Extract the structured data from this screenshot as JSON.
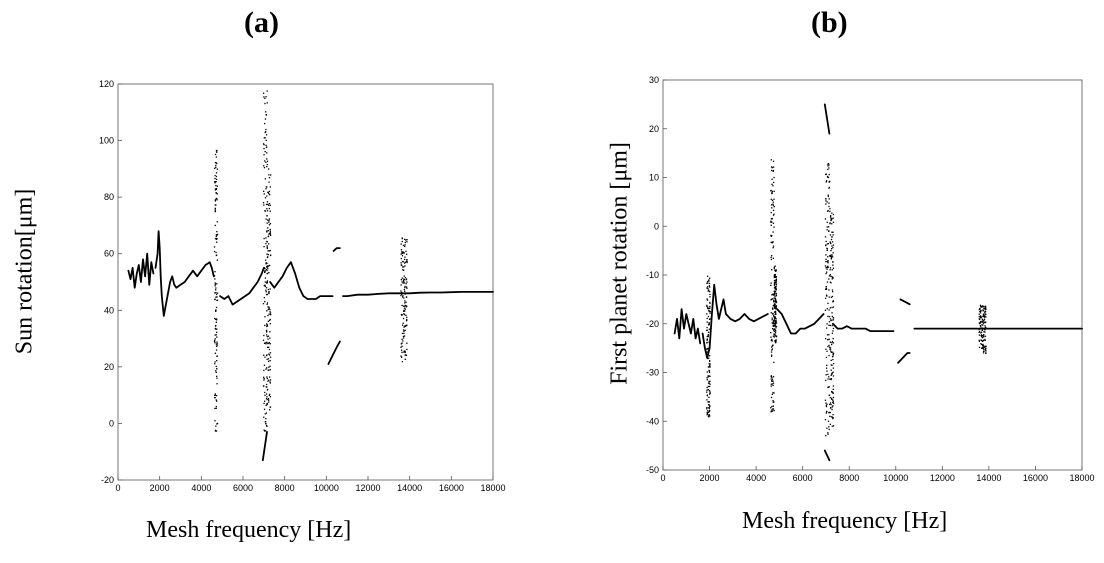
{
  "panels": [
    {
      "letter": "(a)"
    },
    {
      "letter": "(b)"
    }
  ],
  "chart_data": [
    {
      "type": "scatter",
      "xlabel": "Mesh frequency [Hz]",
      "ylabel": "Sun rotation[μm]",
      "xlim": [
        0,
        18000
      ],
      "ylim": [
        -20,
        120
      ],
      "xticks": [
        0,
        2000,
        4000,
        6000,
        8000,
        10000,
        12000,
        14000,
        16000,
        18000
      ],
      "yticks": [
        -20,
        0,
        20,
        40,
        60,
        80,
        100,
        120
      ],
      "grid": false,
      "series": [
        {
          "segments": [
            [
              [
                500,
                54
              ],
              [
                600,
                51
              ],
              [
                700,
                55
              ],
              [
                800,
                48
              ],
              [
                900,
                53
              ],
              [
                1000,
                56
              ],
              [
                1100,
                50
              ],
              [
                1200,
                58
              ],
              [
                1300,
                52
              ],
              [
                1400,
                60
              ],
              [
                1500,
                49
              ],
              [
                1600,
                57
              ],
              [
                1700,
                53
              ]
            ],
            [
              [
                1800,
                55
              ],
              [
                1900,
                60
              ],
              [
                1950,
                68
              ],
              [
                2000,
                62
              ],
              [
                2050,
                52
              ],
              [
                2100,
                45
              ],
              [
                2200,
                38
              ],
              [
                2300,
                42
              ],
              [
                2400,
                46
              ],
              [
                2500,
                50
              ],
              [
                2600,
                52
              ],
              [
                2700,
                49
              ],
              [
                2800,
                48
              ],
              [
                3000,
                49
              ],
              [
                3200,
                50
              ],
              [
                3400,
                52
              ],
              [
                3600,
                54
              ],
              [
                3800,
                52
              ],
              [
                4000,
                54
              ],
              [
                4200,
                56
              ],
              [
                4400,
                57
              ],
              [
                4500,
                55
              ],
              [
                4600,
                52
              ]
            ],
            [
              [
                4900,
                45
              ],
              [
                5100,
                44
              ],
              [
                5300,
                45
              ],
              [
                5500,
                42
              ],
              [
                5700,
                43
              ],
              [
                5900,
                44
              ],
              [
                6100,
                45
              ],
              [
                6300,
                46
              ],
              [
                6500,
                48
              ],
              [
                6700,
                50
              ],
              [
                6900,
                53
              ],
              [
                7000,
                55
              ]
            ],
            [
              [
                7300,
                50
              ],
              [
                7500,
                48
              ],
              [
                7700,
                50
              ],
              [
                7900,
                52
              ],
              [
                8100,
                55
              ],
              [
                8300,
                57
              ],
              [
                8500,
                53
              ],
              [
                8700,
                48
              ],
              [
                8900,
                45
              ],
              [
                9100,
                44
              ],
              [
                9300,
                44
              ],
              [
                9500,
                44
              ],
              [
                9700,
                45
              ],
              [
                9900,
                45
              ],
              [
                10100,
                45
              ],
              [
                10300,
                45
              ]
            ],
            [
              [
                10350,
                61
              ],
              [
                10500,
                62
              ],
              [
                10650,
                62
              ]
            ],
            [
              [
                10100,
                21
              ],
              [
                10300,
                24
              ],
              [
                10500,
                27
              ],
              [
                10650,
                29
              ]
            ],
            [
              [
                10800,
                45
              ],
              [
                11000,
                45
              ],
              [
                11500,
                45.5
              ],
              [
                12000,
                45.5
              ],
              [
                12500,
                45.8
              ],
              [
                13000,
                46
              ],
              [
                13500,
                46
              ],
              [
                14000,
                46
              ],
              [
                14500,
                46.2
              ],
              [
                15000,
                46.3
              ],
              [
                15500,
                46.3
              ],
              [
                16000,
                46.4
              ],
              [
                16500,
                46.5
              ],
              [
                17000,
                46.5
              ],
              [
                17500,
                46.5
              ],
              [
                18000,
                46.5
              ]
            ],
            [
              [
                6950,
                -13
              ],
              [
                7050,
                -8
              ],
              [
                7150,
                -3
              ]
            ]
          ],
          "scatter_bands": [
            {
              "x": [
                4600,
                4750
              ],
              "y": [
                -3,
                97
              ]
            },
            {
              "x": [
                6950,
                7150
              ],
              "y": [
                -3,
                118
              ]
            },
            {
              "x": [
                7100,
                7300
              ],
              "y": [
                5,
                91
              ]
            },
            {
              "x": [
                13550,
                13850
              ],
              "y": [
                22,
                67
              ]
            }
          ]
        }
      ]
    },
    {
      "type": "scatter",
      "xlabel": "Mesh frequency [Hz]",
      "ylabel": "First planet rotation [μm]",
      "xlim": [
        0,
        18000
      ],
      "ylim": [
        -50,
        30
      ],
      "xticks": [
        0,
        2000,
        4000,
        6000,
        8000,
        10000,
        12000,
        14000,
        16000,
        18000
      ],
      "yticks": [
        -50,
        -40,
        -30,
        -20,
        -10,
        0,
        10,
        20,
        30
      ],
      "grid": false,
      "series": [
        {
          "segments": [
            [
              [
                500,
                -22
              ],
              [
                600,
                -19
              ],
              [
                700,
                -23
              ],
              [
                800,
                -17
              ],
              [
                900,
                -21
              ],
              [
                1000,
                -18
              ],
              [
                1100,
                -20
              ],
              [
                1200,
                -22
              ],
              [
                1300,
                -19
              ],
              [
                1400,
                -23
              ],
              [
                1500,
                -21
              ],
              [
                1600,
                -24
              ]
            ],
            [
              [
                1700,
                -22
              ],
              [
                1800,
                -25
              ],
              [
                1900,
                -27
              ],
              [
                2000,
                -25
              ],
              [
                2100,
                -18
              ],
              [
                2200,
                -12
              ],
              [
                2300,
                -16
              ],
              [
                2400,
                -19
              ],
              [
                2500,
                -17
              ],
              [
                2600,
                -15
              ],
              [
                2700,
                -18
              ],
              [
                2900,
                -19
              ],
              [
                3100,
                -19.5
              ],
              [
                3300,
                -19
              ],
              [
                3500,
                -18
              ],
              [
                3700,
                -19
              ],
              [
                3900,
                -19.5
              ],
              [
                4100,
                -19
              ],
              [
                4300,
                -18.5
              ],
              [
                4500,
                -18
              ]
            ],
            [
              [
                4900,
                -17
              ],
              [
                5100,
                -18
              ],
              [
                5300,
                -20
              ],
              [
                5500,
                -22
              ],
              [
                5700,
                -22
              ],
              [
                5900,
                -21
              ],
              [
                6100,
                -21
              ],
              [
                6300,
                -20.5
              ],
              [
                6500,
                -20
              ],
              [
                6700,
                -19
              ],
              [
                6900,
                -18
              ]
            ],
            [
              [
                7300,
                -20
              ],
              [
                7500,
                -21
              ],
              [
                7700,
                -21
              ],
              [
                7900,
                -20.5
              ],
              [
                8100,
                -21
              ],
              [
                8300,
                -21
              ],
              [
                8500,
                -21
              ],
              [
                8700,
                -21
              ],
              [
                8900,
                -21.5
              ],
              [
                9100,
                -21.5
              ],
              [
                9300,
                -21.5
              ],
              [
                9500,
                -21.5
              ],
              [
                9700,
                -21.5
              ],
              [
                9900,
                -21.5
              ]
            ],
            [
              [
                10200,
                -15
              ],
              [
                10400,
                -15.5
              ],
              [
                10600,
                -16
              ]
            ],
            [
              [
                10100,
                -28
              ],
              [
                10300,
                -27
              ],
              [
                10500,
                -26
              ],
              [
                10600,
                -26
              ]
            ],
            [
              [
                10800,
                -21
              ],
              [
                11000,
                -21
              ],
              [
                11500,
                -21
              ],
              [
                12000,
                -21
              ],
              [
                12500,
                -21
              ],
              [
                13000,
                -21
              ],
              [
                13500,
                -21
              ],
              [
                14000,
                -21
              ],
              [
                14500,
                -21
              ],
              [
                15000,
                -21
              ],
              [
                15500,
                -21
              ],
              [
                16000,
                -21
              ],
              [
                16500,
                -21
              ],
              [
                17000,
                -21
              ],
              [
                17500,
                -21
              ],
              [
                18000,
                -21
              ]
            ],
            [
              [
                6950,
                25
              ],
              [
                7050,
                22
              ],
              [
                7150,
                19
              ]
            ],
            [
              [
                6950,
                -46
              ],
              [
                7050,
                -47
              ],
              [
                7150,
                -48
              ]
            ]
          ],
          "scatter_bands": [
            {
              "x": [
                1850,
                2000
              ],
              "y": [
                -39,
                -10
              ]
            },
            {
              "x": [
                4600,
                4750
              ],
              "y": [
                -38,
                14
              ]
            },
            {
              "x": [
                4750,
                4850
              ],
              "y": [
                -24,
                -8
              ]
            },
            {
              "x": [
                6950,
                7150
              ],
              "y": [
                -43,
                13
              ]
            },
            {
              "x": [
                7150,
                7300
              ],
              "y": [
                -41,
                3
              ]
            },
            {
              "x": [
                13550,
                13850
              ],
              "y": [
                -26,
                -16
              ]
            }
          ]
        }
      ]
    }
  ]
}
